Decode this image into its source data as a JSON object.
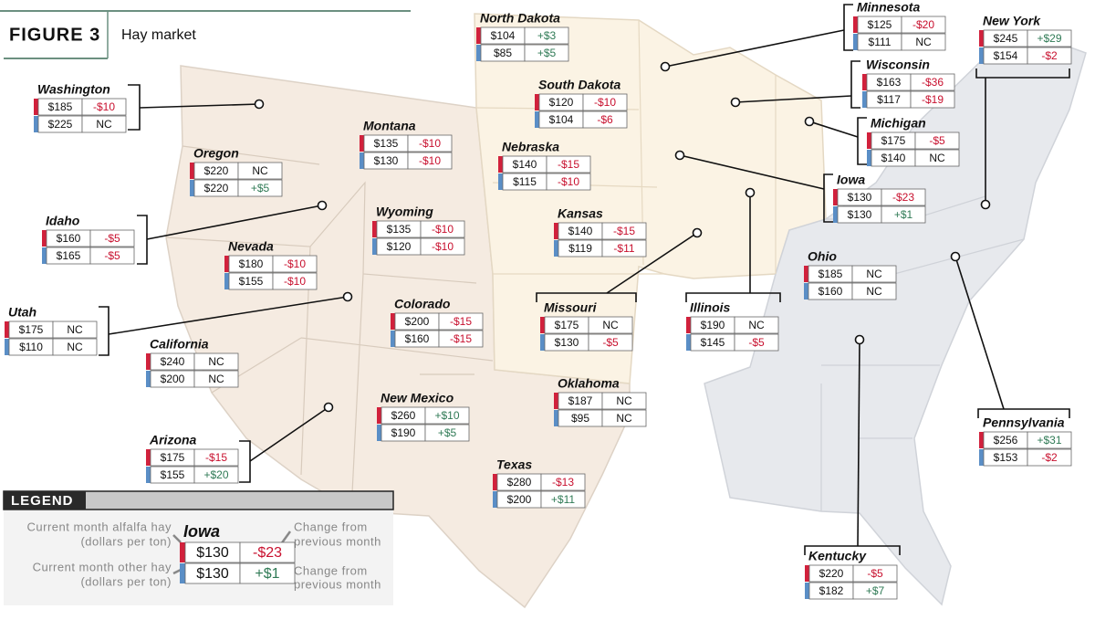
{
  "header": {
    "figure": "FIGURE 3",
    "title": "Hay market"
  },
  "states": [
    {
      "name": "Washington",
      "alfalfa": "$185",
      "alfalfa_change": "-$10",
      "other": "$225",
      "other_change": "NC"
    },
    {
      "name": "Oregon",
      "alfalfa": "$220",
      "alfalfa_change": "NC",
      "other": "$220",
      "other_change": "+$5"
    },
    {
      "name": "Montana",
      "alfalfa": "$135",
      "alfalfa_change": "-$10",
      "other": "$130",
      "other_change": "-$10"
    },
    {
      "name": "Idaho",
      "alfalfa": "$160",
      "alfalfa_change": "-$5",
      "other": "$165",
      "other_change": "-$5"
    },
    {
      "name": "Wyoming",
      "alfalfa": "$135",
      "alfalfa_change": "-$10",
      "other": "$120",
      "other_change": "-$10"
    },
    {
      "name": "Nevada",
      "alfalfa": "$180",
      "alfalfa_change": "-$10",
      "other": "$155",
      "other_change": "-$10"
    },
    {
      "name": "Utah",
      "alfalfa": "$175",
      "alfalfa_change": "NC",
      "other": "$110",
      "other_change": "NC"
    },
    {
      "name": "California",
      "alfalfa": "$240",
      "alfalfa_change": "NC",
      "other": "$200",
      "other_change": "NC"
    },
    {
      "name": "Colorado",
      "alfalfa": "$200",
      "alfalfa_change": "-$15",
      "other": "$160",
      "other_change": "-$15"
    },
    {
      "name": "Arizona",
      "alfalfa": "$175",
      "alfalfa_change": "-$15",
      "other": "$155",
      "other_change": "+$20"
    },
    {
      "name": "New Mexico",
      "alfalfa": "$260",
      "alfalfa_change": "+$10",
      "other": "$190",
      "other_change": "+$5"
    },
    {
      "name": "Oklahoma",
      "alfalfa": "$187",
      "alfalfa_change": "NC",
      "other": "$95",
      "other_change": "NC"
    },
    {
      "name": "Texas",
      "alfalfa": "$280",
      "alfalfa_change": "-$13",
      "other": "$200",
      "other_change": "+$11"
    },
    {
      "name": "North Dakota",
      "alfalfa": "$104",
      "alfalfa_change": "+$3",
      "other": "$85",
      "other_change": "+$5"
    },
    {
      "name": "South Dakota",
      "alfalfa": "$120",
      "alfalfa_change": "-$10",
      "other": "$104",
      "other_change": "-$6"
    },
    {
      "name": "Nebraska",
      "alfalfa": "$140",
      "alfalfa_change": "-$15",
      "other": "$115",
      "other_change": "-$10"
    },
    {
      "name": "Kansas",
      "alfalfa": "$140",
      "alfalfa_change": "-$15",
      "other": "$119",
      "other_change": "-$11"
    },
    {
      "name": "Missouri",
      "alfalfa": "$175",
      "alfalfa_change": "NC",
      "other": "$130",
      "other_change": "-$5"
    },
    {
      "name": "Illinois",
      "alfalfa": "$190",
      "alfalfa_change": "NC",
      "other": "$145",
      "other_change": "-$5"
    },
    {
      "name": "Minnesota",
      "alfalfa": "$125",
      "alfalfa_change": "-$20",
      "other": "$111",
      "other_change": "NC"
    },
    {
      "name": "Wisconsin",
      "alfalfa": "$163",
      "alfalfa_change": "-$36",
      "other": "$117",
      "other_change": "-$19"
    },
    {
      "name": "Michigan",
      "alfalfa": "$175",
      "alfalfa_change": "-$5",
      "other": "$140",
      "other_change": "NC"
    },
    {
      "name": "Iowa",
      "alfalfa": "$130",
      "alfalfa_change": "-$23",
      "other": "$130",
      "other_change": "+$1"
    },
    {
      "name": "Ohio",
      "alfalfa": "$185",
      "alfalfa_change": "NC",
      "other": "$160",
      "other_change": "NC"
    },
    {
      "name": "New York",
      "alfalfa": "$245",
      "alfalfa_change": "+$29",
      "other": "$154",
      "other_change": "-$2"
    },
    {
      "name": "Pennsylvania",
      "alfalfa": "$256",
      "alfalfa_change": "+$31",
      "other": "$153",
      "other_change": "-$2"
    },
    {
      "name": "Kentucky",
      "alfalfa": "$220",
      "alfalfa_change": "-$5",
      "other": "$182",
      "other_change": "+$7"
    }
  ],
  "legend": {
    "title": "LEGEND",
    "example": {
      "name": "Iowa",
      "alfalfa": "$130",
      "alfalfa_change": "-$23",
      "other": "$130",
      "other_change": "+$1"
    },
    "alfalfa_label": "Current month alfalfa hay",
    "alfalfa_unit": "(dollars per ton)",
    "alfalfa_change_label": "Change from",
    "alfalfa_change_unit": "previous month",
    "other_label": "Current month other hay",
    "other_unit": "(dollars per ton)",
    "other_change_label": "Change from",
    "other_change_unit": "previous month"
  }
}
